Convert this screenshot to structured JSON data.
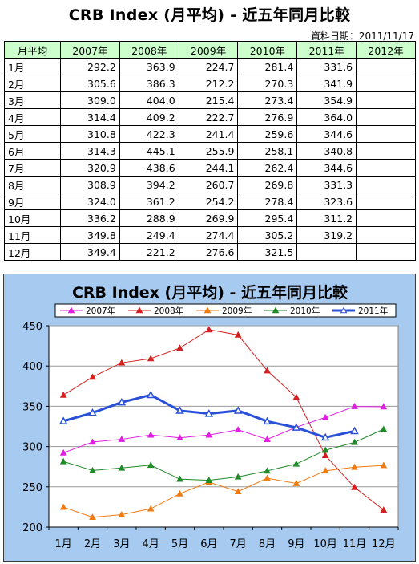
{
  "page": {
    "title": "CRB Index (月平均) - 近五年同月比較",
    "date_label": "資料日期：2011/11/17"
  },
  "table": {
    "header_first": "月平均",
    "columns": [
      "2007年",
      "2008年",
      "2009年",
      "2010年",
      "2011年",
      "2012年"
    ],
    "rows": [
      {
        "month": "1月",
        "cells": [
          "292.2",
          "363.9",
          "224.7",
          "281.4",
          "331.6",
          ""
        ]
      },
      {
        "month": "2月",
        "cells": [
          "305.6",
          "386.3",
          "212.2",
          "270.3",
          "341.9",
          ""
        ]
      },
      {
        "month": "3月",
        "cells": [
          "309.0",
          "404.0",
          "215.4",
          "273.4",
          "354.9",
          ""
        ]
      },
      {
        "month": "4月",
        "cells": [
          "314.4",
          "409.2",
          "222.7",
          "276.9",
          "364.0",
          ""
        ]
      },
      {
        "month": "5月",
        "cells": [
          "310.8",
          "422.3",
          "241.4",
          "259.6",
          "344.6",
          ""
        ]
      },
      {
        "month": "6月",
        "cells": [
          "314.3",
          "445.1",
          "255.9",
          "258.1",
          "340.8",
          ""
        ]
      },
      {
        "month": "7月",
        "cells": [
          "320.9",
          "438.6",
          "244.1",
          "262.4",
          "344.6",
          ""
        ]
      },
      {
        "month": "8月",
        "cells": [
          "308.9",
          "394.2",
          "260.7",
          "269.8",
          "331.3",
          ""
        ]
      },
      {
        "month": "9月",
        "cells": [
          "324.0",
          "361.2",
          "254.2",
          "278.4",
          "323.6",
          ""
        ]
      },
      {
        "month": "10月",
        "cells": [
          "336.2",
          "288.9",
          "269.9",
          "295.4",
          "311.2",
          ""
        ]
      },
      {
        "month": "11月",
        "cells": [
          "349.8",
          "249.4",
          "274.4",
          "305.2",
          "319.2",
          ""
        ]
      },
      {
        "month": "12月",
        "cells": [
          "349.4",
          "221.2",
          "276.6",
          "321.5",
          "",
          ""
        ]
      }
    ]
  },
  "chart_data": {
    "type": "line",
    "title": "CRB Index (月平均) - 近五年同月比較",
    "categories": [
      "1月",
      "2月",
      "3月",
      "4月",
      "5月",
      "6月",
      "7月",
      "8月",
      "9月",
      "10月",
      "11月",
      "12月"
    ],
    "ylim": [
      200,
      450
    ],
    "yticks": [
      200,
      250,
      300,
      350,
      400,
      450
    ],
    "grid": true,
    "legend_position": "top",
    "series": [
      {
        "name": "2007年",
        "color": "#e020e0",
        "marker": "triangle-filled",
        "values": [
          292.2,
          305.6,
          309.0,
          314.4,
          310.8,
          314.3,
          320.9,
          308.9,
          324.0,
          336.2,
          349.8,
          349.4
        ]
      },
      {
        "name": "2008年",
        "color": "#d42020",
        "marker": "triangle-filled",
        "values": [
          363.9,
          386.3,
          404.0,
          409.2,
          422.3,
          445.1,
          438.6,
          394.2,
          361.2,
          288.9,
          249.4,
          221.2
        ]
      },
      {
        "name": "2009年",
        "color": "#f07a10",
        "marker": "triangle-filled",
        "values": [
          224.7,
          212.2,
          215.4,
          222.7,
          241.4,
          255.9,
          244.1,
          260.7,
          254.2,
          269.9,
          274.4,
          276.6
        ]
      },
      {
        "name": "2010年",
        "color": "#1e8a28",
        "marker": "triangle-filled",
        "values": [
          281.4,
          270.3,
          273.4,
          276.9,
          259.6,
          258.1,
          262.4,
          269.8,
          278.4,
          295.4,
          305.2,
          321.5
        ]
      },
      {
        "name": "2011年",
        "color": "#2a50d8",
        "marker": "triangle-open",
        "bold": true,
        "values": [
          331.6,
          341.9,
          354.9,
          364.0,
          344.6,
          340.8,
          344.6,
          331.3,
          323.6,
          311.2,
          319.2,
          null
        ]
      }
    ]
  }
}
